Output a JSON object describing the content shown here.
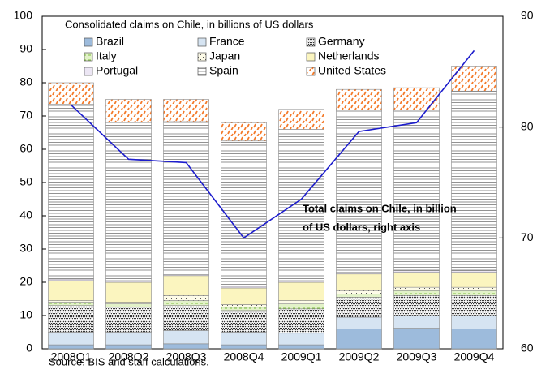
{
  "chart_data": {
    "type": "stacked-bar-line",
    "legend_title": "Consolidated claims on Chile, in billions of US dollars",
    "categories": [
      "2008Q1",
      "2008Q2",
      "2008Q3",
      "2008Q4",
      "2009Q1",
      "2009Q2",
      "2009Q3",
      "2009Q4"
    ],
    "series": [
      {
        "name": "Brazil",
        "color": "#9dbbdc",
        "pattern": "solid",
        "values": [
          1.2,
          1.2,
          1.5,
          1.2,
          1.2,
          6,
          6.2,
          6
        ]
      },
      {
        "name": "France",
        "color": "#d6e4f2",
        "pattern": "solid",
        "values": [
          3.8,
          3.8,
          4,
          3.8,
          3.5,
          3.5,
          3.8,
          4
        ]
      },
      {
        "name": "Germany",
        "color": "#333333",
        "pattern": "dots",
        "values": [
          8,
          7.5,
          7.5,
          6.5,
          7.3,
          6,
          6,
          6
        ]
      },
      {
        "name": "Italy",
        "color": "#7fbf3f",
        "pattern": "dashes",
        "values": [
          1,
          1,
          1.5,
          1,
          1.5,
          1,
          1.5,
          1.5
        ]
      },
      {
        "name": "Japan",
        "color": "#555555",
        "pattern": "sparse-dots",
        "values": [
          0.5,
          0.5,
          1.5,
          0.8,
          1,
          1,
          1,
          1
        ]
      },
      {
        "name": "Netherlands",
        "color": "#fbf5bf",
        "pattern": "solid",
        "values": [
          6,
          6,
          6,
          5,
          5.5,
          5,
          4.5,
          4.5
        ]
      },
      {
        "name": "Portugal",
        "color": "#ece6f4",
        "pattern": "solid",
        "values": [
          0.5,
          0.5,
          0.3,
          0.5,
          0.5,
          0.5,
          0.5,
          0.5
        ]
      },
      {
        "name": "Spain",
        "color": "#777777",
        "pattern": "hstripes",
        "values": [
          52.5,
          47.5,
          46,
          43.7,
          45.5,
          48.5,
          48,
          54
        ]
      },
      {
        "name": "United States",
        "color": "#f47a2a",
        "pattern": "orange-dashes",
        "values": [
          6.5,
          7,
          6.7,
          5.5,
          6,
          6.5,
          7,
          7.5
        ]
      }
    ],
    "line": {
      "color": "#1c1ccc",
      "axis": "y2",
      "values": [
        82.0,
        77.1,
        76.8,
        70.0,
        73.5,
        79.6,
        80.4,
        86.9
      ]
    },
    "annotation": [
      "Total claims on Chile, in billion",
      "of US dollars, right axis"
    ],
    "ylim": [
      0,
      100
    ],
    "yticks": [
      0,
      10,
      20,
      30,
      40,
      50,
      60,
      70,
      80,
      90,
      100
    ],
    "y2lim": [
      60,
      90
    ],
    "y2ticks": [
      60,
      70,
      80,
      90
    ],
    "grid": false,
    "source": "Source: BIS and staff calculations."
  }
}
